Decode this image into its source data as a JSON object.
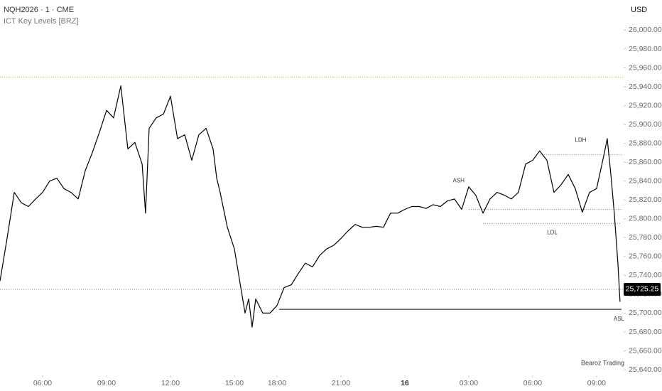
{
  "chart_data": {
    "type": "line",
    "title": "NQH2026 · 1 · CME",
    "subtitle": "ICT Key Levels [BRZ]",
    "currency": "USD",
    "watermark": "Bearoz Trading",
    "xlim": [
      0,
      29.27
    ],
    "ylim": [
      25634,
      26032
    ],
    "xticks": [
      {
        "value": 2,
        "label": "06:00"
      },
      {
        "value": 5,
        "label": "09:00"
      },
      {
        "value": 8,
        "label": "12:00"
      },
      {
        "value": 11,
        "label": "15:00"
      },
      {
        "value": 13,
        "label": "18:00"
      },
      {
        "value": 16,
        "label": "21:00"
      },
      {
        "value": 19,
        "label": "16"
      },
      {
        "value": 22,
        "label": "03:00"
      },
      {
        "value": 25,
        "label": "06:00"
      },
      {
        "value": 28,
        "label": "09:00"
      }
    ],
    "yticks": [
      {
        "value": 25640,
        "label": "25,640.00"
      },
      {
        "value": 25660,
        "label": "25,660.00"
      },
      {
        "value": 25680,
        "label": "25,680.00"
      },
      {
        "value": 25700,
        "label": "25,700.00"
      },
      {
        "value": 25720,
        "label": "25,720.00"
      },
      {
        "value": 25740,
        "label": "25,740.00"
      },
      {
        "value": 25760,
        "label": "25,760.00"
      },
      {
        "value": 25780,
        "label": "25,780.00"
      },
      {
        "value": 25800,
        "label": "25,800.00"
      },
      {
        "value": 25820,
        "label": "25,820.00"
      },
      {
        "value": 25840,
        "label": "25,840.00"
      },
      {
        "value": 25860,
        "label": "25,860.00"
      },
      {
        "value": 25880,
        "label": "25,880.00"
      },
      {
        "value": 25900,
        "label": "25,900.00"
      },
      {
        "value": 25920,
        "label": "25,920.00"
      },
      {
        "value": 25940,
        "label": "25,940.00"
      },
      {
        "value": 25960,
        "label": "25,960.00"
      },
      {
        "value": 25980,
        "label": "25,980.00"
      },
      {
        "value": 26000,
        "label": "26,000.00"
      }
    ],
    "grid": false,
    "series": [
      {
        "color": "#000000",
        "x": [
          0,
          0.33,
          0.67,
          1,
          1.33,
          1.67,
          2,
          2.33,
          2.67,
          3,
          3.33,
          3.67,
          4,
          4.33,
          4.67,
          5,
          5.33,
          5.67,
          6,
          6.33,
          6.67,
          6.83,
          7,
          7.33,
          7.67,
          8,
          8.33,
          8.67,
          9,
          9.33,
          9.67,
          10,
          10.17,
          10.33,
          10.67,
          11,
          11.33,
          11.5,
          11.67,
          11.83,
          12,
          12.33,
          12.67,
          13,
          13.33,
          13.67,
          14,
          14.33,
          14.67,
          15,
          15.33,
          15.67,
          16,
          16.33,
          16.67,
          17,
          17.33,
          17.67,
          18,
          18.33,
          18.67,
          19,
          19.33,
          19.67,
          20,
          20.33,
          20.67,
          21,
          21.33,
          21.67,
          22,
          22.33,
          22.67,
          23,
          23.33,
          23.67,
          24,
          24.33,
          24.67,
          25,
          25.33,
          25.67,
          26,
          26.33,
          26.67,
          27,
          27.33,
          27.67,
          28,
          28.33,
          28.5,
          28.67,
          28.83,
          29,
          29.1
        ],
        "values": [
          25734,
          25779,
          25828,
          25817,
          25813,
          25821,
          25828,
          25840,
          25843,
          25832,
          25828,
          25821,
          25851,
          25870,
          25892,
          25915,
          25907,
          25941,
          25874,
          25881,
          25858,
          25806,
          25896,
          25907,
          25911,
          25930,
          25885,
          25889,
          25862,
          25889,
          25896,
          25874,
          25843,
          25828,
          25791,
          25768,
          25723,
          25700,
          25715,
          25685,
          25715,
          25700,
          25700,
          25708,
          25727,
          25730,
          25742,
          25753,
          25749,
          25761,
          25768,
          25772,
          25779,
          25787,
          25794,
          25791,
          25791,
          25792,
          25791,
          25806,
          25806,
          25810,
          25813,
          25813,
          25811,
          25815,
          25813,
          25819,
          25821,
          25810,
          25834,
          25825,
          25806,
          25821,
          25828,
          25825,
          25821,
          25828,
          25858,
          25862,
          25872,
          25862,
          25828,
          25836,
          25847,
          25832,
          25807,
          25828,
          25832,
          25866,
          25885,
          25847,
          25806,
          25753,
          25712
        ]
      }
    ],
    "levels": [
      {
        "value": 25950,
        "x_start": 0,
        "color": "#f0a050",
        "style": "dotted"
      },
      {
        "value": 25725.25,
        "value_label": "25,725.25",
        "x_start": 0,
        "color": "#888888",
        "style": "dotted"
      },
      {
        "name": "ASL",
        "value": 25704,
        "x_start": 13.1,
        "color": "#000000",
        "style": "solid"
      },
      {
        "name": "ASH",
        "value": 25810,
        "x_start": 22,
        "color": "#888888",
        "style": "dotted"
      },
      {
        "name": "LDL",
        "value": 25795,
        "x_start": 22.67,
        "color": "#888888",
        "style": "dotted"
      },
      {
        "name": "LDH",
        "value": 25868,
        "x_start": 25.33,
        "color": "#888888",
        "style": "dotted"
      }
    ]
  }
}
